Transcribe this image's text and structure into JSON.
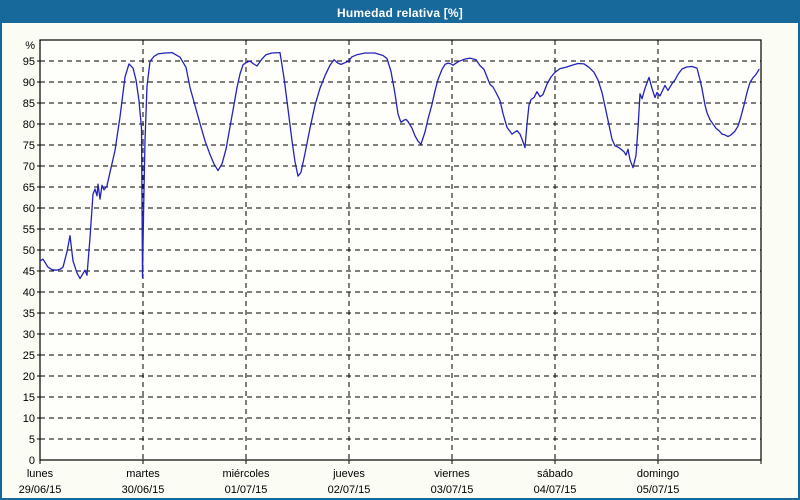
{
  "window": {
    "title": "Humedad relativa [%]"
  },
  "colors": {
    "title_bar_bg": "#17699c",
    "title_text": "#ffffff",
    "frame_border": "#17699c",
    "page_bg": "#fbfcf4",
    "plot_bg": "#fefefa",
    "line": "#2323bb",
    "grid": "#000000",
    "label": "#000000"
  },
  "chart_data": {
    "type": "line",
    "title": "Humedad relativa [%]",
    "ylabel": "%",
    "y_unit_symbol": "%",
    "ylim": [
      0,
      100
    ],
    "grid": true,
    "legend": "none",
    "yticks": [
      0,
      5,
      10,
      15,
      20,
      25,
      30,
      35,
      40,
      45,
      50,
      55,
      60,
      65,
      70,
      75,
      80,
      85,
      90,
      95
    ],
    "x_axis": {
      "unit": "day",
      "range_days": [
        0,
        7
      ],
      "days": [
        {
          "name": "lunes",
          "date": "29/06/15"
        },
        {
          "name": "martes",
          "date": "30/06/15"
        },
        {
          "name": "miércoles",
          "date": "01/07/15"
        },
        {
          "name": "jueves",
          "date": "02/07/15"
        },
        {
          "name": "viernes",
          "date": "03/07/15"
        },
        {
          "name": "sábado",
          "date": "04/07/15"
        },
        {
          "name": "domingo",
          "date": "05/07/15"
        }
      ]
    },
    "series": [
      {
        "name": "Humedad relativa",
        "color": "#2323bb",
        "points": [
          [
            0.0,
            47.4
          ],
          [
            0.029,
            47.8
          ],
          [
            0.078,
            45.9
          ],
          [
            0.117,
            45.3
          ],
          [
            0.155,
            45.2
          ],
          [
            0.194,
            45.4
          ],
          [
            0.223,
            45.9
          ],
          [
            0.262,
            49.6
          ],
          [
            0.291,
            53.4
          ],
          [
            0.32,
            47.4
          ],
          [
            0.359,
            44.5
          ],
          [
            0.388,
            43.2
          ],
          [
            0.437,
            45.2
          ],
          [
            0.456,
            44.0
          ],
          [
            0.485,
            52.9
          ],
          [
            0.515,
            63.3
          ],
          [
            0.534,
            64.5
          ],
          [
            0.553,
            62.9
          ],
          [
            0.563,
            65.7
          ],
          [
            0.583,
            62.1
          ],
          [
            0.602,
            65.4
          ],
          [
            0.621,
            64.3
          ],
          [
            0.65,
            65.3
          ],
          [
            0.68,
            68.5
          ],
          [
            0.728,
            73.7
          ],
          [
            0.777,
            81.7
          ],
          [
            0.825,
            91.2
          ],
          [
            0.864,
            94.3
          ],
          [
            0.903,
            93.3
          ],
          [
            0.932,
            90.5
          ],
          [
            0.961,
            85.5
          ],
          [
            0.985,
            79.0
          ],
          [
            0.995,
            43.5
          ],
          [
            1.005,
            58.0
          ],
          [
            1.019,
            76.0
          ],
          [
            1.039,
            89.0
          ],
          [
            1.068,
            94.9
          ],
          [
            1.107,
            96.1
          ],
          [
            1.146,
            96.7
          ],
          [
            1.214,
            96.9
          ],
          [
            1.282,
            97.0
          ],
          [
            1.359,
            95.9
          ],
          [
            1.417,
            93.5
          ],
          [
            1.456,
            88.7
          ],
          [
            1.505,
            84.4
          ],
          [
            1.553,
            80.1
          ],
          [
            1.602,
            76.0
          ],
          [
            1.65,
            72.8
          ],
          [
            1.689,
            70.5
          ],
          [
            1.728,
            68.9
          ],
          [
            1.767,
            70.5
          ],
          [
            1.806,
            74.0
          ],
          [
            1.845,
            79.3
          ],
          [
            1.883,
            84.5
          ],
          [
            1.913,
            88.7
          ],
          [
            1.942,
            91.9
          ],
          [
            1.971,
            94.1
          ],
          [
            2.0,
            94.6
          ],
          [
            2.039,
            95.0
          ],
          [
            2.068,
            94.4
          ],
          [
            2.107,
            93.8
          ],
          [
            2.155,
            95.5
          ],
          [
            2.194,
            96.5
          ],
          [
            2.252,
            96.9
          ],
          [
            2.33,
            97.0
          ],
          [
            2.369,
            91.0
          ],
          [
            2.408,
            83.6
          ],
          [
            2.447,
            76.0
          ],
          [
            2.476,
            71.0
          ],
          [
            2.505,
            67.6
          ],
          [
            2.534,
            68.5
          ],
          [
            2.573,
            73.0
          ],
          [
            2.621,
            79.0
          ],
          [
            2.67,
            84.5
          ],
          [
            2.718,
            88.5
          ],
          [
            2.767,
            91.5
          ],
          [
            2.816,
            94.0
          ],
          [
            2.854,
            95.3
          ],
          [
            2.893,
            94.5
          ],
          [
            2.922,
            94.2
          ],
          [
            2.961,
            94.6
          ],
          [
            2.99,
            94.9
          ],
          [
            3.029,
            96.0
          ],
          [
            3.078,
            96.5
          ],
          [
            3.155,
            96.9
          ],
          [
            3.252,
            96.9
          ],
          [
            3.33,
            96.3
          ],
          [
            3.369,
            95.6
          ],
          [
            3.408,
            92.5
          ],
          [
            3.447,
            87.2
          ],
          [
            3.476,
            82.4
          ],
          [
            3.495,
            81.0
          ],
          [
            3.505,
            80.4
          ],
          [
            3.534,
            80.9
          ],
          [
            3.553,
            81.1
          ],
          [
            3.573,
            80.6
          ],
          [
            3.612,
            79.0
          ],
          [
            3.641,
            77.2
          ],
          [
            3.67,
            75.9
          ],
          [
            3.699,
            75.2
          ],
          [
            3.738,
            78.1
          ],
          [
            3.767,
            81.2
          ],
          [
            3.806,
            84.7
          ],
          [
            3.835,
            87.9
          ],
          [
            3.864,
            90.6
          ],
          [
            3.903,
            93.0
          ],
          [
            3.932,
            94.2
          ],
          [
            3.961,
            94.5
          ],
          [
            3.99,
            94.3
          ],
          [
            4.01,
            94.0
          ],
          [
            4.058,
            94.8
          ],
          [
            4.117,
            95.4
          ],
          [
            4.175,
            95.7
          ],
          [
            4.233,
            95.3
          ],
          [
            4.272,
            93.9
          ],
          [
            4.311,
            93.0
          ],
          [
            4.34,
            91.2
          ],
          [
            4.369,
            89.4
          ],
          [
            4.398,
            88.8
          ],
          [
            4.427,
            87.5
          ],
          [
            4.466,
            85.6
          ],
          [
            4.495,
            82.5
          ],
          [
            4.534,
            79.2
          ],
          [
            4.583,
            77.6
          ],
          [
            4.612,
            78.1
          ],
          [
            4.631,
            78.4
          ],
          [
            4.66,
            77.6
          ],
          [
            4.68,
            76.4
          ],
          [
            4.709,
            74.4
          ],
          [
            4.728,
            80.0
          ],
          [
            4.748,
            84.5
          ],
          [
            4.767,
            85.8
          ],
          [
            4.796,
            86.3
          ],
          [
            4.825,
            87.7
          ],
          [
            4.854,
            86.5
          ],
          [
            4.883,
            87.0
          ],
          [
            4.922,
            89.5
          ],
          [
            4.961,
            91.2
          ],
          [
            5.0,
            92.3
          ],
          [
            5.049,
            93.2
          ],
          [
            5.107,
            93.5
          ],
          [
            5.165,
            94.0
          ],
          [
            5.223,
            94.4
          ],
          [
            5.282,
            94.3
          ],
          [
            5.33,
            93.5
          ],
          [
            5.379,
            92.3
          ],
          [
            5.417,
            90.5
          ],
          [
            5.456,
            87.5
          ],
          [
            5.505,
            82.0
          ],
          [
            5.553,
            76.4
          ],
          [
            5.583,
            74.8
          ],
          [
            5.612,
            74.5
          ],
          [
            5.641,
            74.0
          ],
          [
            5.67,
            73.4
          ],
          [
            5.689,
            72.6
          ],
          [
            5.709,
            74.0
          ],
          [
            5.728,
            71.5
          ],
          [
            5.757,
            69.6
          ],
          [
            5.786,
            72.5
          ],
          [
            5.806,
            79.0
          ],
          [
            5.825,
            87.2
          ],
          [
            5.845,
            86.0
          ],
          [
            5.874,
            88.5
          ],
          [
            5.913,
            91.1
          ],
          [
            5.942,
            88.5
          ],
          [
            5.971,
            86.3
          ],
          [
            5.99,
            87.5
          ],
          [
            6.019,
            86.7
          ],
          [
            6.068,
            89.2
          ],
          [
            6.097,
            88.0
          ],
          [
            6.136,
            89.6
          ],
          [
            6.165,
            90.5
          ],
          [
            6.194,
            91.8
          ],
          [
            6.233,
            93.1
          ],
          [
            6.282,
            93.6
          ],
          [
            6.33,
            93.7
          ],
          [
            6.379,
            93.3
          ],
          [
            6.408,
            90.5
          ],
          [
            6.427,
            88.4
          ],
          [
            6.456,
            84.5
          ],
          [
            6.476,
            82.7
          ],
          [
            6.505,
            81.0
          ],
          [
            6.534,
            80.0
          ],
          [
            6.563,
            79.0
          ],
          [
            6.592,
            78.4
          ],
          [
            6.621,
            77.6
          ],
          [
            6.65,
            77.4
          ],
          [
            6.68,
            77.0
          ],
          [
            6.709,
            77.4
          ],
          [
            6.748,
            78.3
          ],
          [
            6.777,
            79.5
          ],
          [
            6.806,
            81.8
          ],
          [
            6.835,
            84.5
          ],
          [
            6.864,
            87.5
          ],
          [
            6.893,
            89.9
          ],
          [
            6.922,
            91.0
          ],
          [
            6.951,
            91.8
          ],
          [
            6.981,
            93.0
          ]
        ]
      }
    ]
  }
}
